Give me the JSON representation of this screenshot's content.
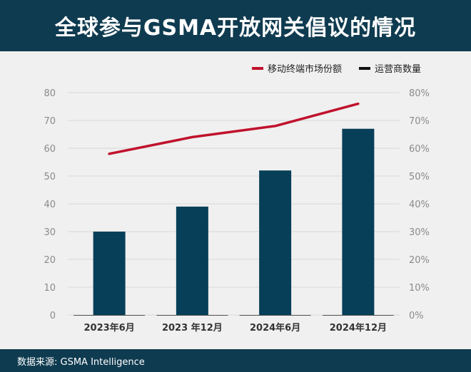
{
  "header": {
    "title": "全球参与GSMA开放网关倡议的情况"
  },
  "footer": {
    "source": "数据来源: GSMA Intelligence"
  },
  "colors": {
    "bar": "#073f59",
    "line": "#c0122c",
    "header_bg": "#0f3b50",
    "grid": "#d9d9d9",
    "axis_text": "#8a8a8a"
  },
  "chart_data": {
    "type": "bar",
    "title": "全球参与GSMA开放网关倡议的情况",
    "categories": [
      "2023年6月",
      "2023 年12月",
      "2024年6月",
      "2024年12月"
    ],
    "series": [
      {
        "name": "运营商数量",
        "type": "bar",
        "axis": "left",
        "values": [
          30,
          39,
          52,
          67
        ]
      },
      {
        "name": "移动终端市场份额",
        "type": "line",
        "axis": "right",
        "values": [
          58,
          64,
          68,
          76
        ]
      }
    ],
    "left_axis": {
      "min": 0,
      "max": 80,
      "ticks": [
        "0",
        "10",
        "20",
        "30",
        "40",
        "50",
        "60",
        "70",
        "80"
      ]
    },
    "right_axis": {
      "min": 0,
      "max": 80,
      "ticks": [
        "0%",
        "10%",
        "20%",
        "30%",
        "40%",
        "50%",
        "60%",
        "70%",
        "80%"
      ]
    },
    "legend": {
      "position": "top-right",
      "items": [
        "移动终端市场份额",
        "运营商数量"
      ]
    },
    "grid": true
  }
}
